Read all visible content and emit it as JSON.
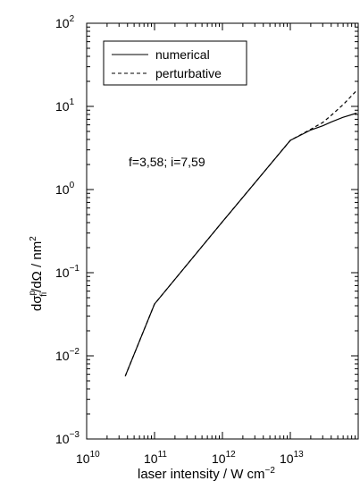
{
  "chart_data": {
    "type": "line",
    "xscale": "log",
    "yscale": "log",
    "xlim": [
      10000000000.0,
      100000000000000.0
    ],
    "ylim": [
      0.001,
      100
    ],
    "xlabel": "laser intensity / W cm",
    "xlabel_sup": "−2",
    "ylabel": {
      "d": "d",
      "sigma": "σ",
      "sup_p": "p",
      "sub_fi": "fi",
      "mid": "/dΩ / nm",
      "sup_2": "2"
    },
    "x_ticks": [
      {
        "value": 10000000000.0,
        "base": "10",
        "exp": "10"
      },
      {
        "value": 100000000000.0,
        "base": "10",
        "exp": "11"
      },
      {
        "value": 1000000000000.0,
        "base": "10",
        "exp": "12"
      },
      {
        "value": 10000000000000.0,
        "base": "10",
        "exp": "13"
      }
    ],
    "y_ticks": [
      {
        "value": 0.001,
        "base": "10",
        "exp": "−3"
      },
      {
        "value": 0.01,
        "base": "10",
        "exp": "−2"
      },
      {
        "value": 0.1,
        "base": "10",
        "exp": "−1"
      },
      {
        "value": 1,
        "base": "10",
        "exp": "0"
      },
      {
        "value": 10,
        "base": "10",
        "exp": "1"
      },
      {
        "value": 100,
        "base": "10",
        "exp": "2"
      }
    ],
    "annotation": "f=3,58; i=7,59",
    "legend": {
      "placement": "top-left",
      "entries": [
        {
          "name": "numerical",
          "dash": "solid"
        },
        {
          "name": "perturbative",
          "dash": "dashed"
        }
      ]
    },
    "series": [
      {
        "name": "numerical",
        "dash": "solid",
        "x": [
          37000000000.0,
          100000000000.0,
          1000000000000.0,
          10000000000000.0,
          20000000000000.0,
          30000000000000.0,
          40000000000000.0,
          60000000000000.0,
          95000000000000.0
        ],
        "y": [
          0.0057,
          0.042,
          0.41,
          3.9,
          5.2,
          5.85,
          6.5,
          7.4,
          8.3
        ]
      },
      {
        "name": "perturbative",
        "dash": "dashed",
        "x": [
          37000000000.0,
          100000000000.0,
          1000000000000.0,
          10000000000000.0,
          20000000000000.0,
          30000000000000.0,
          40000000000000.0,
          60000000000000.0,
          95000000000000.0
        ],
        "y": [
          0.0057,
          0.042,
          0.41,
          3.9,
          5.3,
          6.4,
          7.8,
          10.5,
          15.5
        ]
      }
    ]
  }
}
